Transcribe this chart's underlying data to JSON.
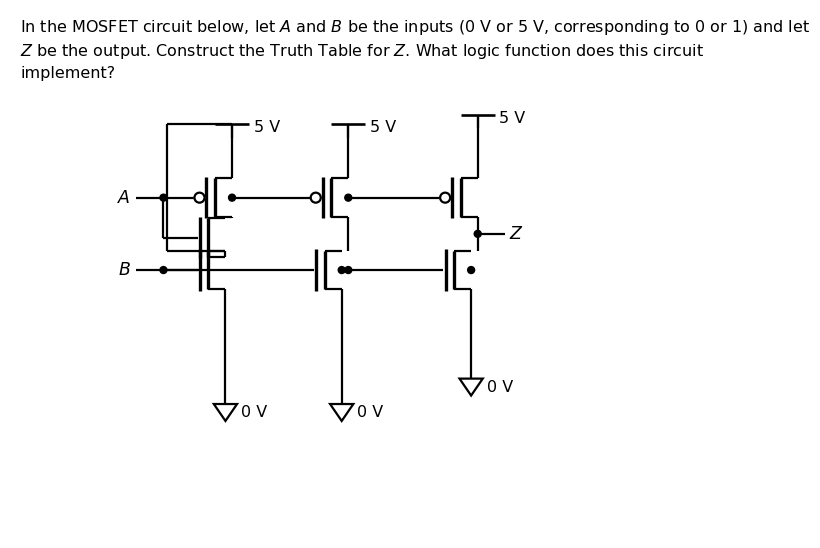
{
  "bg_color": "#ffffff",
  "line_color": "#000000",
  "line_width": 1.6,
  "font_size": 11.5,
  "fig_width": 8.69,
  "fig_height": 6.86,
  "title_line1": "In the MOSFET circuit below, let $A$ and $B$ be the inputs (0 V or 5 V, corresponding to 0 or 1) and let",
  "title_line2": "$Z$ be the output. Construct the Truth Table for $Z$. What logic function does this circuit",
  "title_line3": "implement?"
}
